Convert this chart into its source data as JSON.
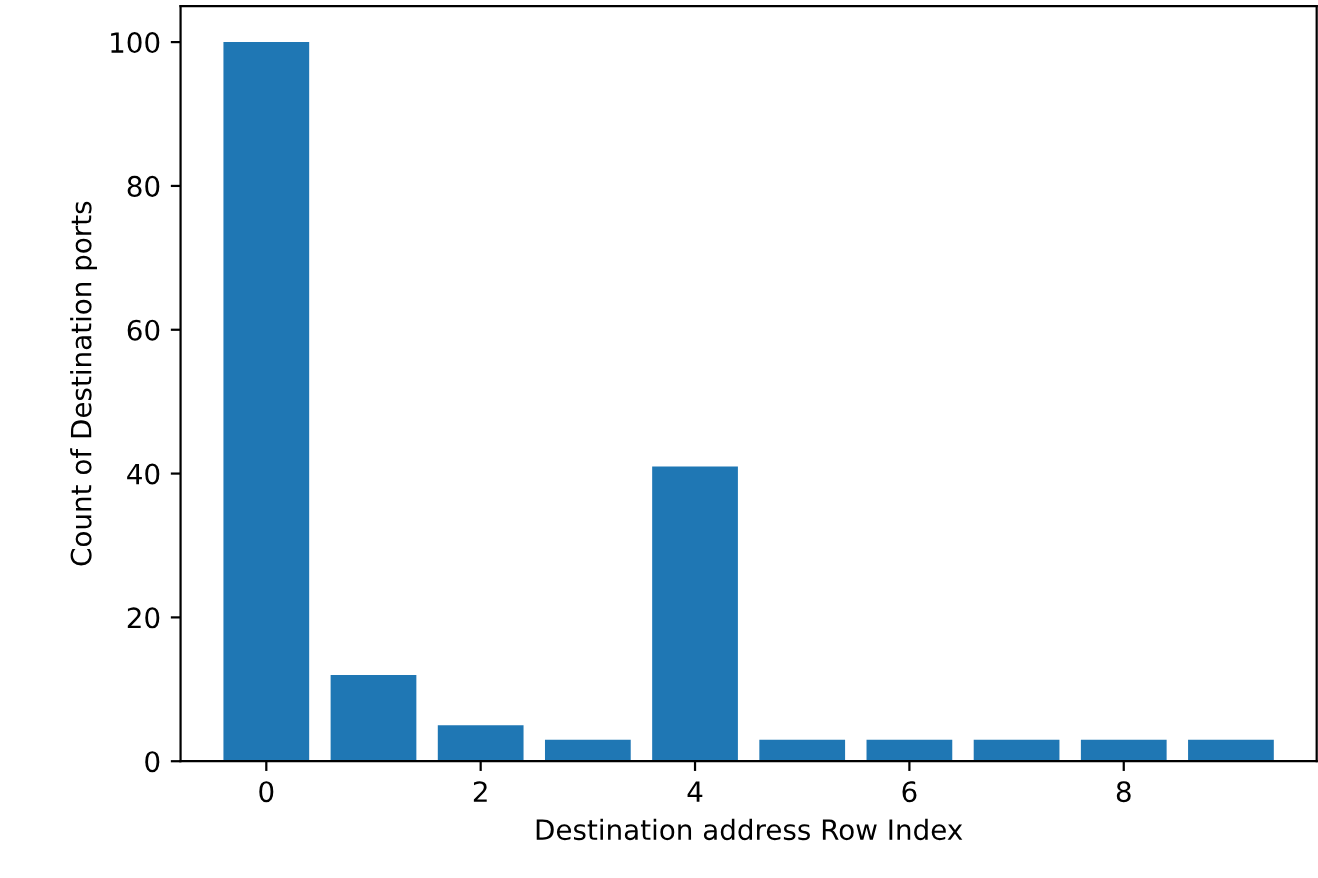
{
  "chart_data": {
    "type": "bar",
    "xlabel": "Destination address Row Index",
    "ylabel": "Count of Destination ports",
    "x": [
      0,
      1,
      2,
      3,
      4,
      5,
      6,
      7,
      8,
      9
    ],
    "values": [
      100,
      12,
      5,
      3,
      41,
      3,
      3,
      3,
      3,
      3
    ],
    "color": "#1f77b4",
    "xlim": [
      -0.8,
      9.8
    ],
    "xticks": [
      0,
      2,
      4,
      6,
      8
    ],
    "ylim": [
      0,
      105
    ],
    "yticks": [
      0,
      20,
      40,
      60,
      80,
      100
    ],
    "grid": false
  }
}
